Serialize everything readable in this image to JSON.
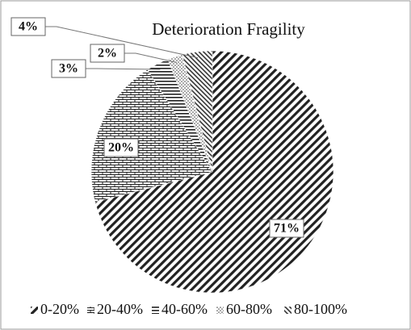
{
  "chart_data": {
    "type": "pie",
    "title": "Deterioration Fragility",
    "categories": [
      "0-20%",
      "20-40%",
      "40-60%",
      "60-80%",
      "80-100%"
    ],
    "values": [
      71,
      20,
      3,
      2,
      4
    ],
    "value_labels": [
      "71%",
      "20%",
      "3%",
      "2%",
      "4%"
    ],
    "legend": "bottom"
  }
}
